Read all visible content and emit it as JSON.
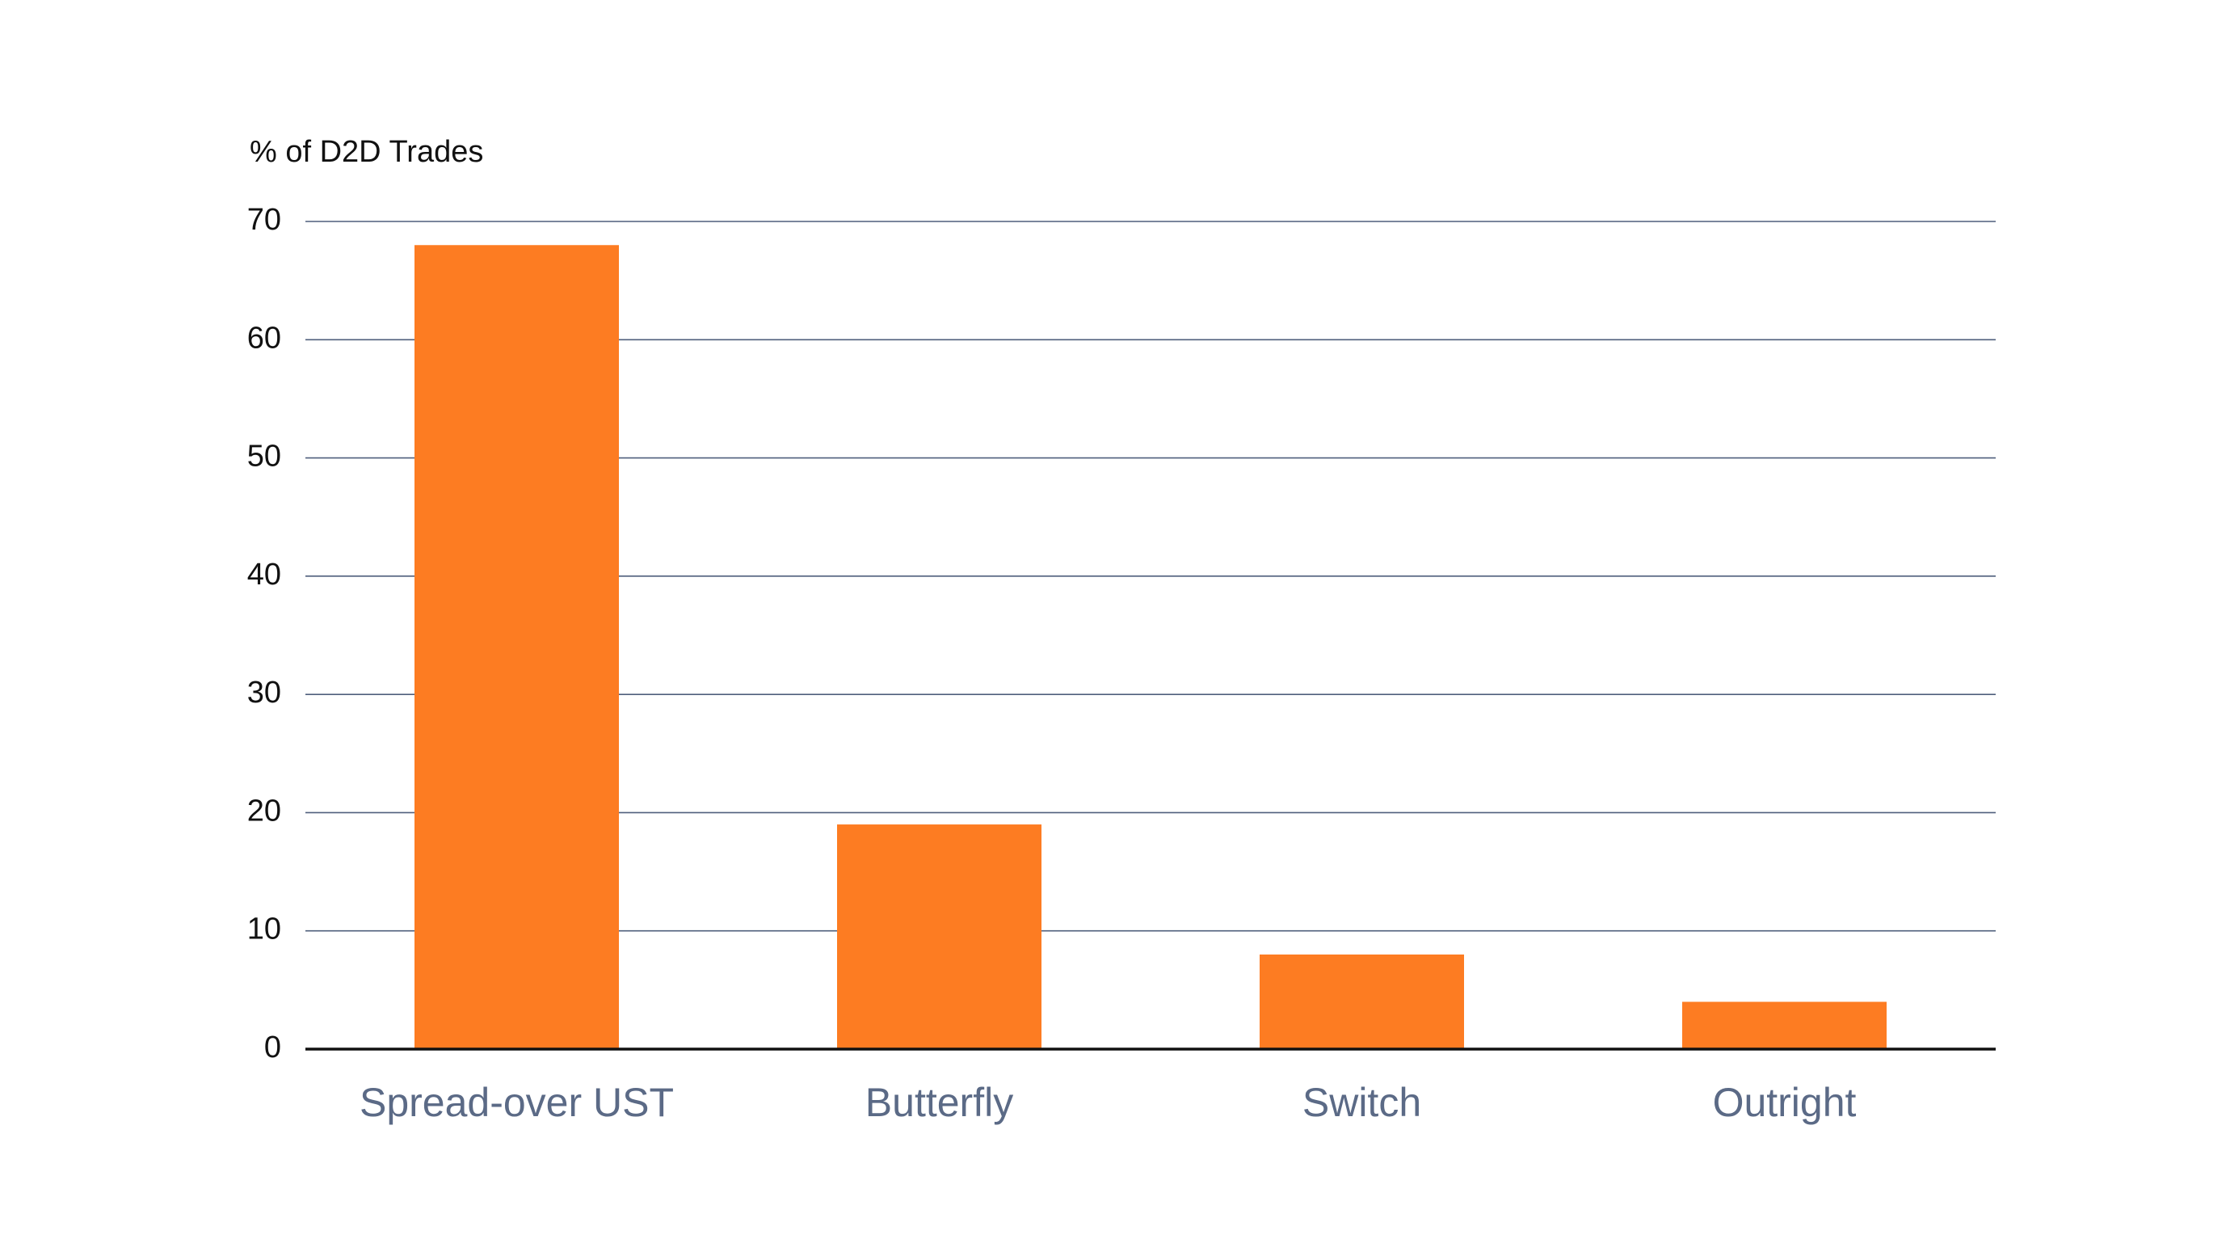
{
  "chart_data": {
    "type": "bar",
    "title": "",
    "ylabel": "% of D2D Trades",
    "xlabel": "",
    "categories": [
      "Spread-over UST",
      "Butterfly",
      "Switch",
      "Outright"
    ],
    "values": [
      68,
      19,
      8,
      4
    ],
    "ylim": [
      0,
      70
    ],
    "yticks": [
      0,
      10,
      20,
      30,
      40,
      50,
      60,
      70
    ],
    "grid": true,
    "legend": "none",
    "colors": {
      "bar": "#fd7c22",
      "grid": "#4f5f7c",
      "baseline": "#111111",
      "category_label": "#5b6a86",
      "axis_text": "#111111"
    }
  }
}
